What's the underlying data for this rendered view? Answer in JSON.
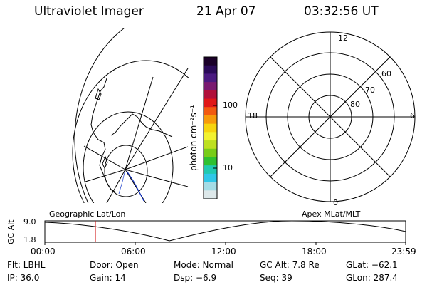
{
  "header": {
    "title": "Ultraviolet Imager",
    "date": "21 Apr 07",
    "time": "03:32:56 UT"
  },
  "colorbar": {
    "unit_label": "photon cm⁻²s⁻¹",
    "ticks": [
      "100",
      "10"
    ],
    "colors": [
      "#1a0028",
      "#2a0a58",
      "#4a1a80",
      "#7a1a70",
      "#b0103a",
      "#e01818",
      "#f25a10",
      "#f79a0a",
      "#f6d40e",
      "#f2f230",
      "#bde020",
      "#78cc18",
      "#2ec030",
      "#20c9b0",
      "#2fc7e8",
      "#a4dce6",
      "#dde8ea"
    ]
  },
  "polar": {
    "lat_labels": [
      "80",
      "70",
      "60"
    ],
    "mlt_labels": {
      "top": "12",
      "bottom": "0",
      "left": "18",
      "right": "6"
    }
  },
  "timeline": {
    "left_title": "Geographic Lat/Lon",
    "right_title": "Apex MLat/MLT",
    "axis_label": "GC Alt",
    "y_ticks": [
      "9.0",
      "1.8"
    ],
    "x_ticks": [
      "00:00",
      "06:00",
      "12:00",
      "18:00",
      "23:59"
    ],
    "marker_color": "#cc0000"
  },
  "status": {
    "flt": "Flt: LBHL",
    "door": "Door: Open",
    "mode": "Mode: Normal",
    "gcalt": "GC Alt: 7.8 Re",
    "glat": "GLat: −62.1",
    "ip": "IP: 36.0",
    "gain": "Gain: 14",
    "dsp": "Dsp:   −6.9",
    "seq": "Seq: 39",
    "glon": "GLon: 287.4"
  }
}
